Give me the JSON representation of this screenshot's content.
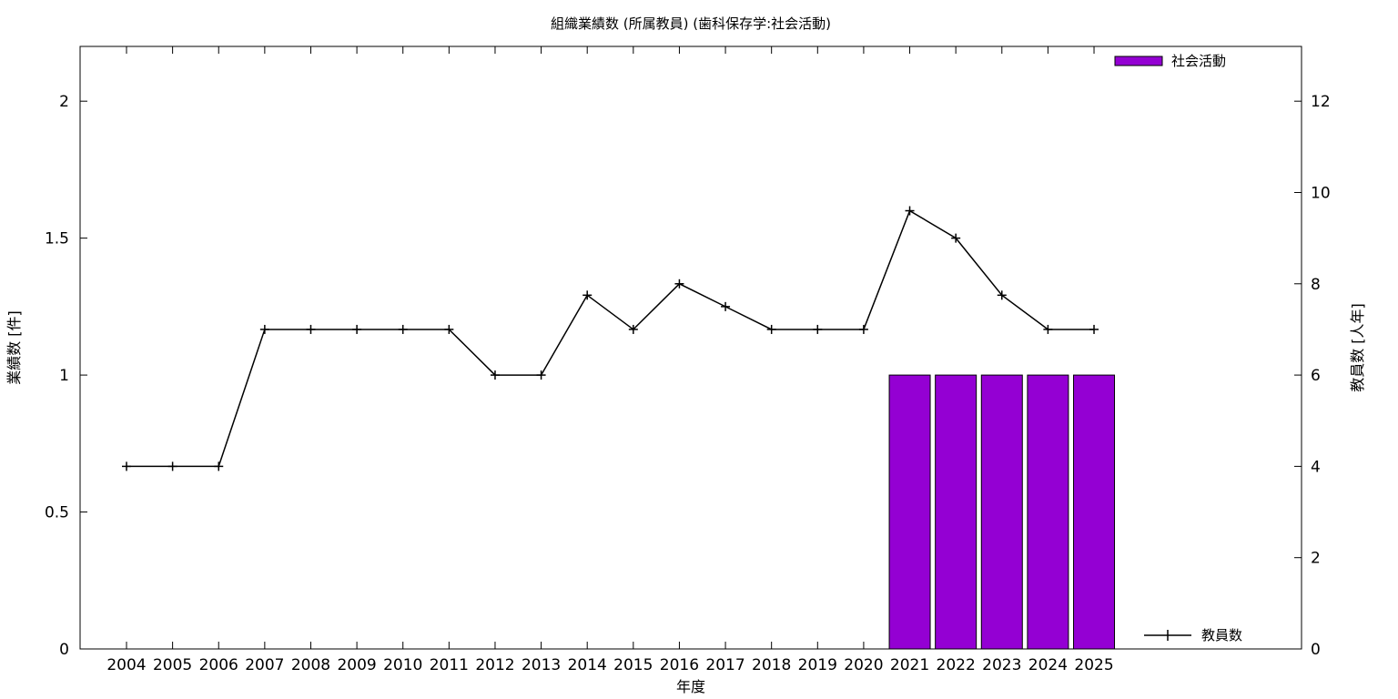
{
  "chart_data": {
    "type": "bar+line",
    "title": "組織業績数 (所属教員) (歯科保存学:社会活動)",
    "xlabel": "年度",
    "ylabel_left": "業績数 [件]",
    "ylabel_right": "教員数 [人年]",
    "categories": [
      "2004",
      "2005",
      "2006",
      "2007",
      "2008",
      "2009",
      "2010",
      "2011",
      "2012",
      "2013",
      "2014",
      "2015",
      "2016",
      "2017",
      "2018",
      "2019",
      "2020",
      "2021",
      "2022",
      "2023",
      "2024",
      "2025"
    ],
    "y_left_range": [
      0,
      2.2
    ],
    "y_left_ticks": [
      "0",
      "0.5",
      "1",
      "1.5",
      "2"
    ],
    "y_right_range": [
      0,
      13.2
    ],
    "y_right_ticks": [
      "0",
      "2",
      "4",
      "6",
      "8",
      "10",
      "12"
    ],
    "legend_placement": "top-right (bars), bottom-right (line)",
    "series": [
      {
        "name": "社会活動",
        "kind": "bar",
        "axis": "left",
        "color": "#9400d3",
        "values": [
          0,
          0,
          0,
          0,
          0,
          0,
          0,
          0,
          0,
          0,
          0,
          0,
          0,
          0,
          0,
          0,
          0,
          1,
          1,
          1,
          1,
          1
        ]
      },
      {
        "name": "教員数",
        "kind": "line",
        "axis": "right",
        "color": "#000000",
        "values": [
          4,
          4,
          4,
          7,
          7,
          7,
          7,
          7,
          6,
          6,
          7.75,
          7,
          8,
          7.5,
          7,
          7,
          7,
          9.6,
          9,
          7.75,
          7,
          7
        ]
      }
    ]
  }
}
